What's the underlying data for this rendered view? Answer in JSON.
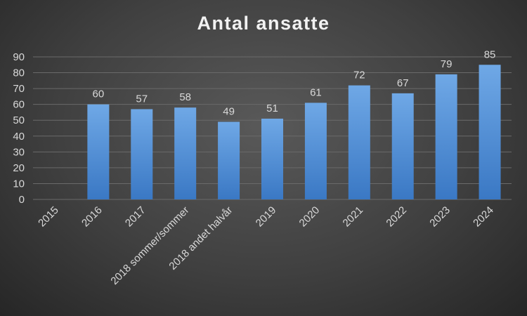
{
  "chart_data": {
    "type": "bar",
    "title": "Antal ansatte",
    "categories": [
      "2015",
      "2016",
      "2017",
      "2018 sommer/sommer",
      "2018 andet halvår",
      "2019",
      "2020",
      "2021",
      "2022",
      "2023",
      "2024"
    ],
    "values": [
      null,
      60,
      57,
      58,
      49,
      51,
      61,
      72,
      67,
      79,
      85
    ],
    "ylim": [
      0,
      90
    ],
    "yticks": [
      0,
      10,
      20,
      30,
      40,
      50,
      60,
      70,
      80,
      90
    ],
    "grid": true,
    "legend": "none",
    "data_labels": true,
    "colors": {
      "bar_top": "#6fa8e6",
      "bar_bottom": "#3a78c4",
      "text": "#d9d9d9",
      "grid": "#6a6a6a"
    }
  }
}
